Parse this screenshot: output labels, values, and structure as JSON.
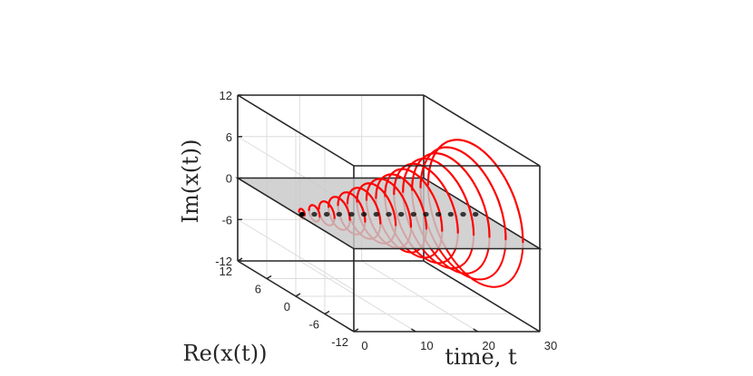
{
  "chart_data": {
    "type": "line",
    "view": "3d",
    "xlabel": "time, t",
    "ylabel": "Re(x(t))",
    "zlabel": "Im(x(t))",
    "axes": {
      "time": {
        "lim": [
          0,
          30
        ],
        "ticks": [
          0,
          10,
          20,
          30
        ],
        "tick_labels": [
          "0",
          "10",
          "20",
          "30"
        ]
      },
      "re": {
        "lim": [
          -12,
          12
        ],
        "ticks": [
          -12,
          -6,
          0,
          6,
          12
        ],
        "tick_labels": [
          "-12",
          "-6",
          "0",
          "6",
          "12"
        ]
      },
      "im": {
        "lim": [
          -12,
          12
        ],
        "ticks": [
          -12,
          -6,
          0,
          6,
          12
        ],
        "tick_labels": [
          "-12",
          "-6",
          "0",
          "6",
          "12"
        ]
      }
    },
    "grid": true,
    "plane": {
      "at_im": 0,
      "color": "#c8c8c8"
    },
    "loops": {
      "color": "#ff0000",
      "description": "circles in the Re-Im plane at each time value, radius = value",
      "t": [
        1,
        3,
        5,
        7,
        9,
        11,
        13,
        15,
        17,
        19,
        21,
        23,
        25,
        27,
        29
      ],
      "radius": [
        0.6,
        1.1,
        1.6,
        2.2,
        2.8,
        3.4,
        4.0,
        4.6,
        5.2,
        5.9,
        6.6,
        7.3,
        8.0,
        8.8,
        9.8
      ]
    },
    "points": {
      "color": "#000000",
      "description": "dots on the Im=0 plane",
      "t": [
        1,
        3,
        5,
        7,
        9,
        11,
        13,
        15,
        17,
        19,
        21,
        23,
        25,
        27,
        29
      ],
      "re": [
        0,
        0,
        0,
        0,
        0,
        0,
        0,
        0,
        0,
        0,
        0,
        0,
        0,
        0,
        0
      ]
    }
  }
}
